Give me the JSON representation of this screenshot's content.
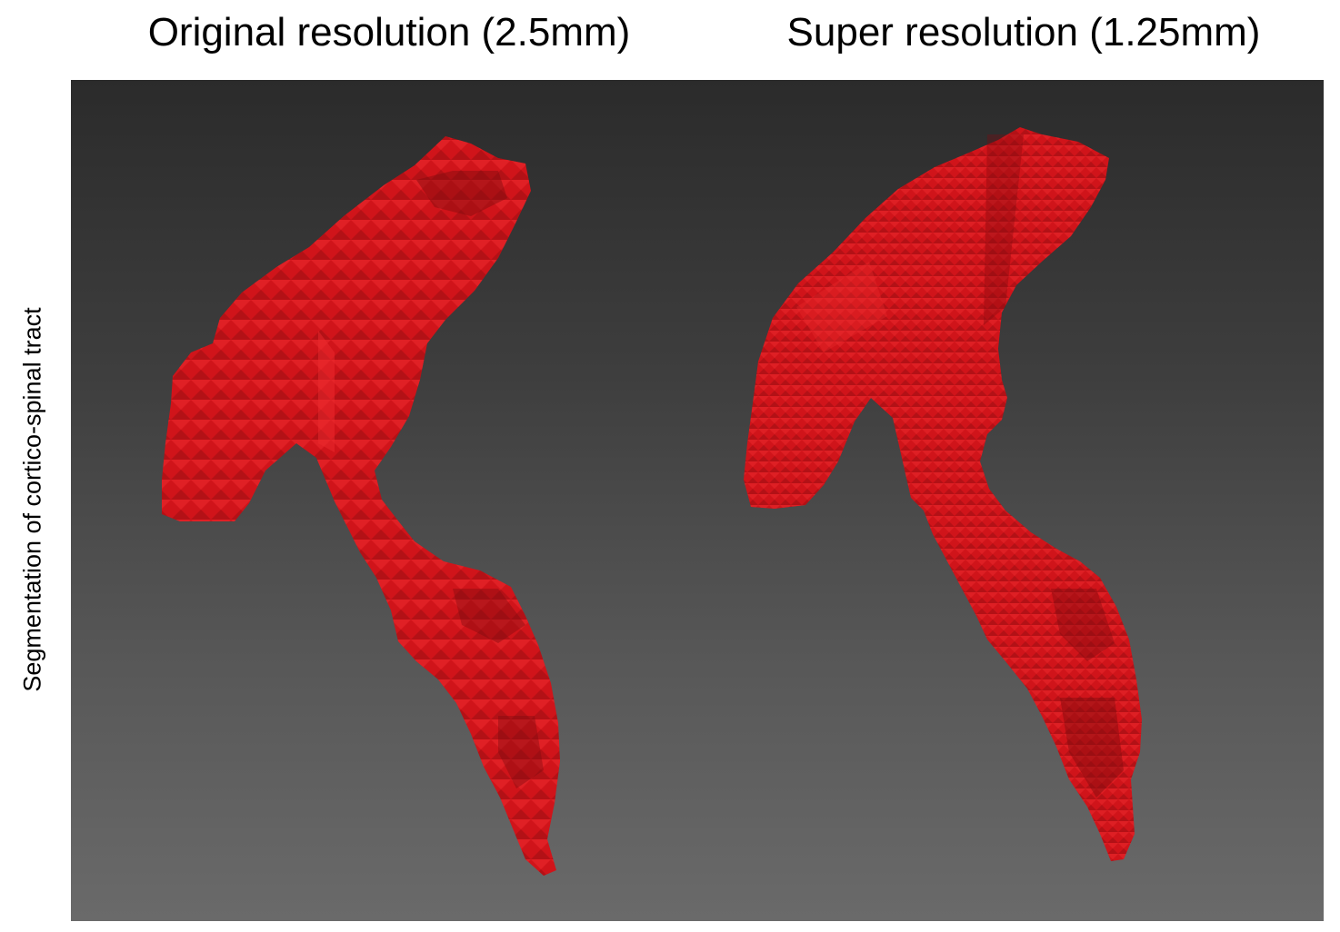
{
  "titles": {
    "left": "Original resolution (2.5mm)",
    "right": "Super resolution (1.25mm)"
  },
  "ylabel": "Segmentation of cortico-spinal tract",
  "colors": {
    "tract": "#d0141a",
    "tract_highlight": "#ec2a2e",
    "tract_shadow": "#7e0a0e",
    "background_top": "#2b2b2b",
    "background_bottom": "#6a6a6a"
  }
}
